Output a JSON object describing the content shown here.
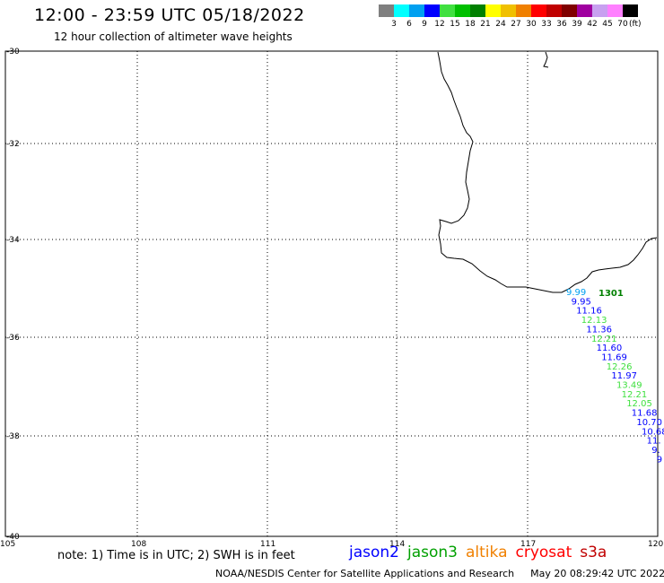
{
  "title": "12:00 - 23:59 UTC 05/18/2022",
  "subtitle": "12 hour collection of altimeter wave heights",
  "colorbar": {
    "unit": "(ft)",
    "labels": [
      "3",
      "6",
      "9",
      "12",
      "15",
      "18",
      "21",
      "24",
      "27",
      "30",
      "33",
      "36",
      "39",
      "42",
      "45",
      "70"
    ],
    "colors": [
      "#7f7f7f",
      "#00ffff",
      "#00a0f0",
      "#0000ff",
      "#40e040",
      "#00c000",
      "#008000",
      "#ffff00",
      "#f0c000",
      "#f08000",
      "#ff0000",
      "#c00000",
      "#800000",
      "#a000a0",
      "#c8a0f0",
      "#ff80ff",
      "#000000"
    ]
  },
  "map": {
    "lat_ticks": [
      "-30",
      "-32",
      "-34",
      "-36",
      "-38",
      "-40"
    ],
    "lon_ticks": [
      "105",
      "108",
      "111",
      "114",
      "117",
      "120"
    ],
    "station_label": "1301",
    "track": [
      {
        "t": "9.99",
        "c": "#00a0f0"
      },
      {
        "t": "9.95",
        "c": "#0000ff"
      },
      {
        "t": "11.16",
        "c": "#0000ff"
      },
      {
        "t": "12.13",
        "c": "#40e040"
      },
      {
        "t": "11.36",
        "c": "#0000ff"
      },
      {
        "t": "12.21",
        "c": "#40e040"
      },
      {
        "t": "11.60",
        "c": "#0000ff"
      },
      {
        "t": "11.69",
        "c": "#0000ff"
      },
      {
        "t": "12.26",
        "c": "#40e040"
      },
      {
        "t": "11.97",
        "c": "#0000ff"
      },
      {
        "t": "13.49",
        "c": "#40e040"
      },
      {
        "t": "12.21",
        "c": "#40e040"
      },
      {
        "t": "12.05",
        "c": "#40e040"
      },
      {
        "t": "11.68",
        "c": "#0000ff"
      },
      {
        "t": "10.70",
        "c": "#0000ff"
      },
      {
        "t": "10.68",
        "c": "#0000ff"
      },
      {
        "t": "11.",
        "c": "#0000ff"
      },
      {
        "t": "9.",
        "c": "#0000ff"
      },
      {
        "t": "9",
        "c": "#0000ff"
      }
    ]
  },
  "footer": {
    "note": "note: 1) Time is in UTC; 2) SWH is in feet",
    "satellites": [
      {
        "name": "jason2",
        "color": "#0000ff"
      },
      {
        "name": "jason3",
        "color": "#00a000"
      },
      {
        "name": "altika",
        "color": "#f08000"
      },
      {
        "name": "cryosat",
        "color": "#ff0000"
      },
      {
        "name": "s3a",
        "color": "#c00000"
      }
    ],
    "credit": "NOAA/NESDIS Center for Satellite Applications and Research",
    "timestamp": "May 20 08:29:42 UTC 2022"
  }
}
